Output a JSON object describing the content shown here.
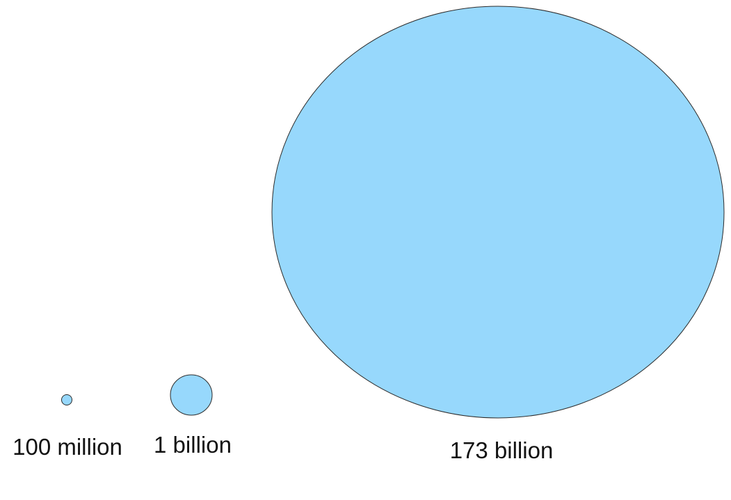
{
  "chart_data": {
    "type": "bubble",
    "title": "",
    "categories": [
      "100 million",
      "1 billion",
      "173 billion"
    ],
    "values": [
      100000000,
      1000000000,
      173000000000
    ],
    "labels": [
      "100 million",
      "1 billion",
      "173 billion"
    ],
    "fill_color": "#97d8fc",
    "stroke_color": "#2b2b2b",
    "label_color": "#111111",
    "background": "#ffffff"
  }
}
